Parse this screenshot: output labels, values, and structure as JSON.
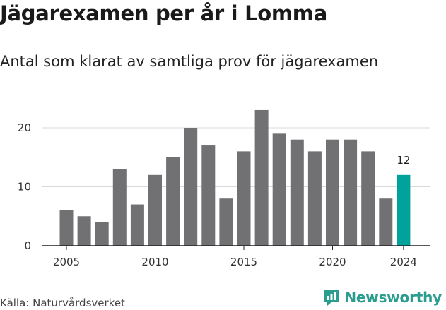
{
  "title": "Jägarexamen per år i Lomma",
  "subtitle": "Antal som klarat av samtliga prov för jägarexamen",
  "source": "Källa: Naturvårdsverket",
  "brand": {
    "name": "Newsworthy",
    "icon": "newsworthy-logo-icon"
  },
  "colors": {
    "bar": "#717073",
    "highlight": "#00a39b",
    "grid": "#d9d9d9",
    "axis": "#222222",
    "brand": "#2a9d8f"
  },
  "chart_data": {
    "type": "bar",
    "x": [
      2005,
      2006,
      2007,
      2008,
      2009,
      2010,
      2011,
      2012,
      2013,
      2014,
      2015,
      2016,
      2017,
      2018,
      2019,
      2020,
      2021,
      2022,
      2023,
      2024
    ],
    "values": [
      6,
      5,
      4,
      13,
      7,
      12,
      15,
      20,
      17,
      8,
      16,
      23,
      19,
      18,
      16,
      18,
      18,
      16,
      8,
      12
    ],
    "highlight_index": 19,
    "data_labels": [
      {
        "index": 19,
        "text": "12"
      }
    ],
    "x_ticks": [
      2005,
      2010,
      2015,
      2020,
      2024
    ],
    "y_ticks": [
      0,
      10,
      20
    ],
    "ylim": [
      0,
      25
    ],
    "grid": true,
    "title": "Jägarexamen per år i Lomma",
    "subtitle": "Antal som klarat av samtliga prov för jägarexamen",
    "xlabel": "",
    "ylabel": ""
  }
}
